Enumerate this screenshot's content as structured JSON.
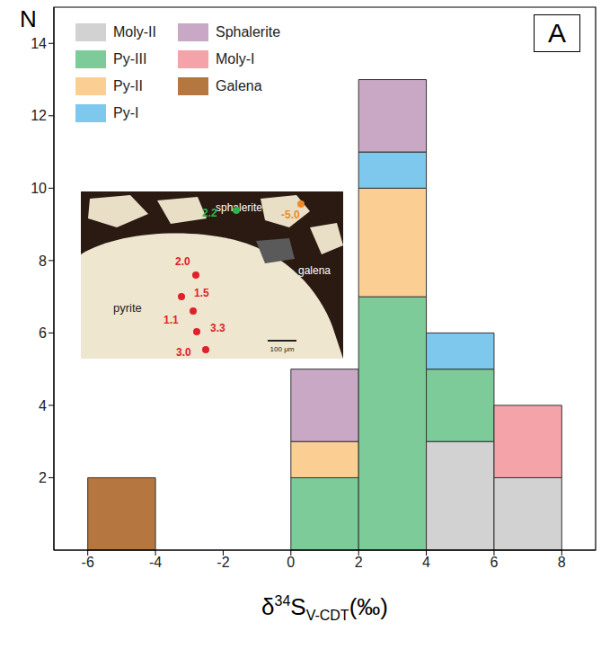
{
  "chart_data": {
    "type": "histogram",
    "panel_label": "A",
    "y_label": "N",
    "x_label": [
      "δ",
      "34",
      "S",
      "V-CDT",
      "(‰)"
    ],
    "bins": [
      -6,
      -4,
      -2,
      0,
      2,
      4,
      6,
      8
    ],
    "stacked": true,
    "series": [
      {
        "name": "Moly-II",
        "color": "#d2d2d2",
        "values": [
          0,
          0,
          0,
          0,
          0,
          3,
          2
        ]
      },
      {
        "name": "Py-III",
        "color": "#7ccb99",
        "values": [
          0,
          0,
          0,
          2,
          7,
          2,
          0
        ]
      },
      {
        "name": "Py-II",
        "color": "#fbcf94",
        "values": [
          0,
          0,
          0,
          1,
          3,
          0,
          0
        ]
      },
      {
        "name": "Py-I",
        "color": "#7ec8ee",
        "values": [
          0,
          0,
          0,
          0,
          1,
          1,
          0
        ]
      },
      {
        "name": "Sphalerite",
        "color": "#c9a8c6",
        "values": [
          0,
          0,
          0,
          2,
          2,
          0,
          0
        ]
      },
      {
        "name": "Moly-I",
        "color": "#f4a3a8",
        "values": [
          0,
          0,
          0,
          0,
          0,
          0,
          2
        ]
      },
      {
        "name": "Galena",
        "color": "#b5773f",
        "values": [
          2,
          0,
          0,
          0,
          0,
          0,
          0
        ]
      }
    ],
    "xlim": [
      -7,
      9
    ],
    "xticks": [
      -6,
      -4,
      -2,
      0,
      2,
      4,
      6,
      8
    ],
    "ylim": [
      0,
      15
    ],
    "yticks": [
      2,
      4,
      6,
      8,
      10,
      12,
      14
    ],
    "grid": false,
    "legend": "upper left",
    "inset": {
      "minerals": [
        "sphalerite",
        "galena",
        "pyrite"
      ],
      "scale_bar": "100 μm",
      "points": [
        {
          "label": "2.0",
          "color": "#e0202a"
        },
        {
          "label": "1.5",
          "color": "#e0202a"
        },
        {
          "label": "1.1",
          "color": "#e0202a"
        },
        {
          "label": "3.3",
          "color": "#e0202a"
        },
        {
          "label": "3.0",
          "color": "#e0202a"
        },
        {
          "label": "2.2",
          "color": "#2bb54a"
        },
        {
          "label": "-5.0",
          "color": "#f08a24"
        }
      ]
    }
  }
}
